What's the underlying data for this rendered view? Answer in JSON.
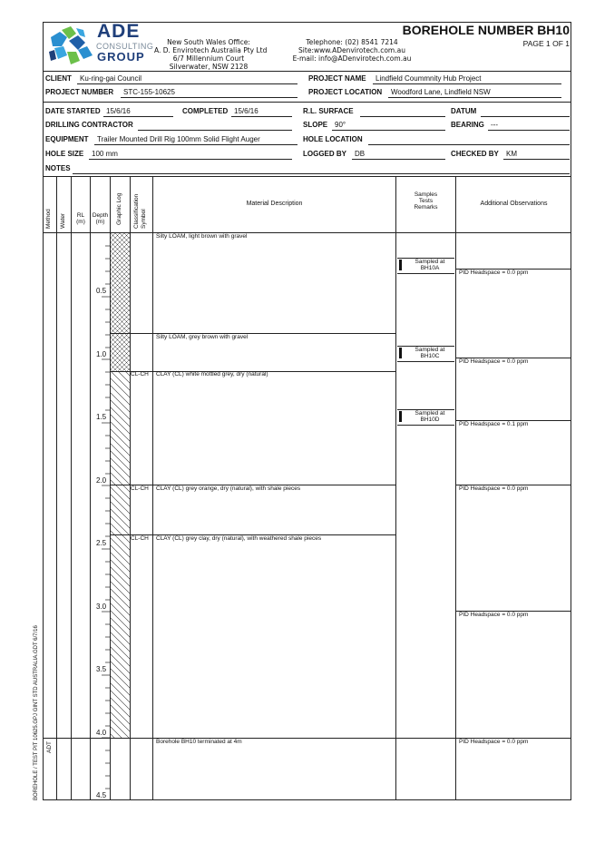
{
  "header": {
    "logo_main": "ADE",
    "logo_sub": "CONSULTING",
    "logo_group": "GROUP",
    "office_title": "New South Wales Office:",
    "office_company": "A. D. Envirotech Australia Pty Ltd",
    "office_addr1": "6/7 Millennium Court",
    "office_addr2": "Silverwater, NSW 2128",
    "phone": "Telephone: (02) 8541 7214",
    "site": "Site:www.ADenvirotech.com.au",
    "email": "E-mail: info@ADenvirotech.com.au",
    "title": "BOREHOLE NUMBER BH10",
    "page": "PAGE 1 OF 1"
  },
  "fields": {
    "client_label": "CLIENT",
    "client": "Ku-ring-gai Council",
    "project_name_label": "PROJECT NAME",
    "project_name": "Lindfield Coummnity Hub Project",
    "project_number_label": "PROJECT NUMBER",
    "project_number": "STC-155-10625",
    "project_location_label": "PROJECT LOCATION",
    "project_location": "Woodford Lane, Lindfield NSW",
    "date_started_label": "DATE STARTED",
    "date_started": "15/6/16",
    "completed_label": "COMPLETED",
    "completed": "15/6/16",
    "rl_surface_label": "R.L. SURFACE",
    "rl_surface": "",
    "datum_label": "DATUM",
    "datum": "",
    "drilling_contractor_label": "DRILLING CONTRACTOR",
    "drilling_contractor": "",
    "slope_label": "SLOPE",
    "slope": "90°",
    "bearing_label": "BEARING",
    "bearing": "---",
    "equipment_label": "EQUIPMENT",
    "equipment": "Trailer Mounted Drill Rig 100mm Solid Flight Auger",
    "hole_location_label": "HOLE LOCATION",
    "hole_location": "",
    "hole_size_label": "HOLE SIZE",
    "hole_size": "100 mm",
    "logged_by_label": "LOGGED BY",
    "logged_by": "DB",
    "checked_by_label": "CHECKED BY",
    "checked_by": "KM",
    "notes_label": "NOTES",
    "notes": ""
  },
  "columns": {
    "method": "Method",
    "water": "Water",
    "rl": "RL\n(m)",
    "depth": "Depth\n(m)",
    "graphic": "Graphic Log",
    "classification": "Classification\nSymbol",
    "material": "Material Description",
    "samples": "Samples\nTests\nRemarks",
    "observations": "Additional Observations"
  },
  "log": {
    "method": "ADT",
    "depth_ticks": [
      "0.5",
      "1.0",
      "1.5",
      "2.0",
      "2.5",
      "3.0",
      "3.5",
      "4.0",
      "4.5"
    ],
    "layers": [
      {
        "symbol": "",
        "description": "Silty LOAM, light brown with gravel"
      },
      {
        "symbol": "",
        "description": "Silty LOAM, grey brown with gravel"
      },
      {
        "symbol": "CL-CH",
        "description": "CLAY (CL) white mottled grey, dry (natural)"
      },
      {
        "symbol": "CL-CH",
        "description": "CLAY (CL) grey orange, dry (natural), with shale pieces"
      },
      {
        "symbol": "CL-CH",
        "description": "CLAY (CL) grey clay, dry (natural), with weathered shale pieces"
      },
      {
        "symbol": "",
        "description": "Borehole BH10 terminated at 4m"
      }
    ],
    "samples": [
      {
        "line1": "Sampled at",
        "line2": "BH10A"
      },
      {
        "line1": "Sampled at",
        "line2": "BH10C"
      },
      {
        "line1": "Sampled at",
        "line2": "BH10D"
      }
    ],
    "observations": [
      "PID Headspace = 0.0 ppm",
      "PID Headspace = 0.0 ppm",
      "PID Headspace = 0.1 ppm",
      "PID Headspace = 0.0 ppm",
      "PID Headspace = 0.0 ppm",
      "PID Headspace = 0.0 ppm"
    ]
  },
  "footer_side": "BOREHOLE / TEST PIT 10625.GPJ GINT STD AUSTRALIA.GDT 6/7/16",
  "colors": {
    "logo_blue": "#2a8fd0",
    "logo_green": "#6cc04a",
    "logo_dark": "#1f3f7a"
  }
}
